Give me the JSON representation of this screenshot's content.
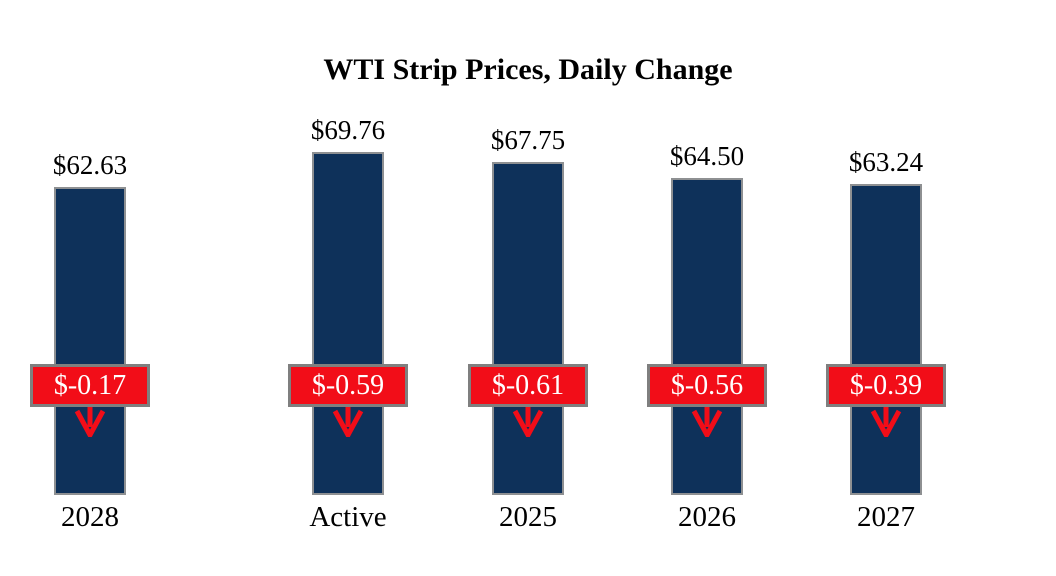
{
  "title": "WTI Strip Prices, Daily Change",
  "colors": {
    "background": "#ffffff",
    "bar_fill": "#0e315a",
    "bar_border": "#8e9092",
    "badge_fill": "#f20d18",
    "badge_border": "#7f7f7f",
    "badge_text": "#ffffff",
    "arrow": "#f20d18",
    "text": "#000000"
  },
  "chart_data": {
    "type": "bar",
    "title": "WTI Strip Prices, Daily Change",
    "categories": [
      "Active",
      "2025",
      "2026",
      "2027",
      "2028"
    ],
    "values": [
      69.76,
      67.75,
      64.5,
      63.24,
      62.63
    ],
    "value_labels": [
      "$69.76",
      "$67.75",
      "$64.50",
      "$63.24",
      "$62.63"
    ],
    "changes": [
      -0.59,
      -0.61,
      -0.56,
      -0.39,
      -0.17
    ],
    "change_labels": [
      "$-0.59",
      "$-0.61",
      "$-0.56",
      "$-0.39",
      "$-0.17"
    ],
    "xlabel": "",
    "ylabel": "",
    "baseline": 0,
    "axes_hidden": true,
    "grid": false,
    "legend": "none",
    "change_marker": "red-badge-with-down-arrow"
  }
}
